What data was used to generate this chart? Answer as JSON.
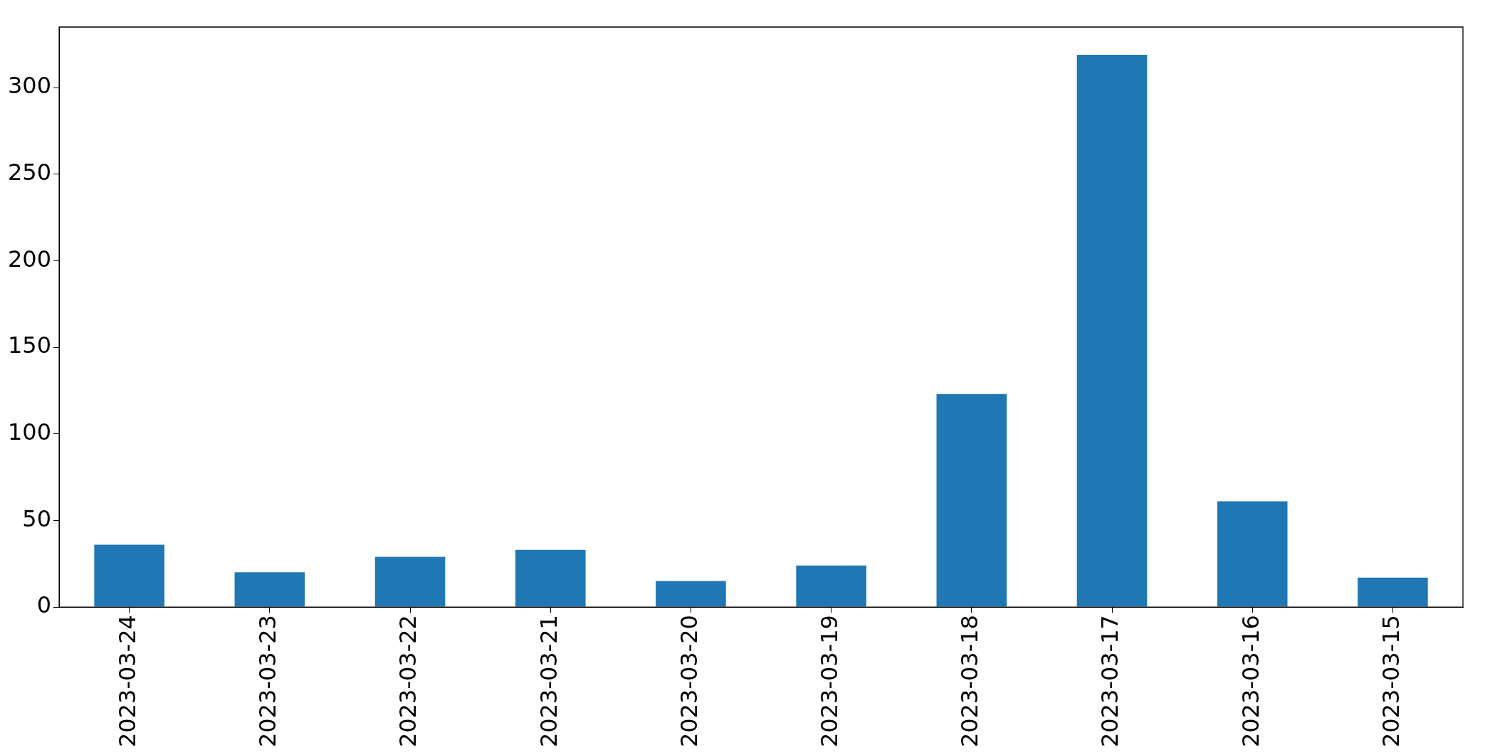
{
  "chart_data": {
    "type": "bar",
    "categories": [
      "2023-03-24",
      "2023-03-23",
      "2023-03-22",
      "2023-03-21",
      "2023-03-20",
      "2023-03-19",
      "2023-03-18",
      "2023-03-17",
      "2023-03-16",
      "2023-03-15"
    ],
    "values": [
      36,
      20,
      29,
      33,
      15,
      24,
      123,
      319,
      61,
      17
    ],
    "color": "#1f77b4",
    "ylim": [
      0,
      335
    ],
    "yticks": [
      0,
      50,
      100,
      150,
      200,
      250,
      300
    ],
    "grid": false
  }
}
